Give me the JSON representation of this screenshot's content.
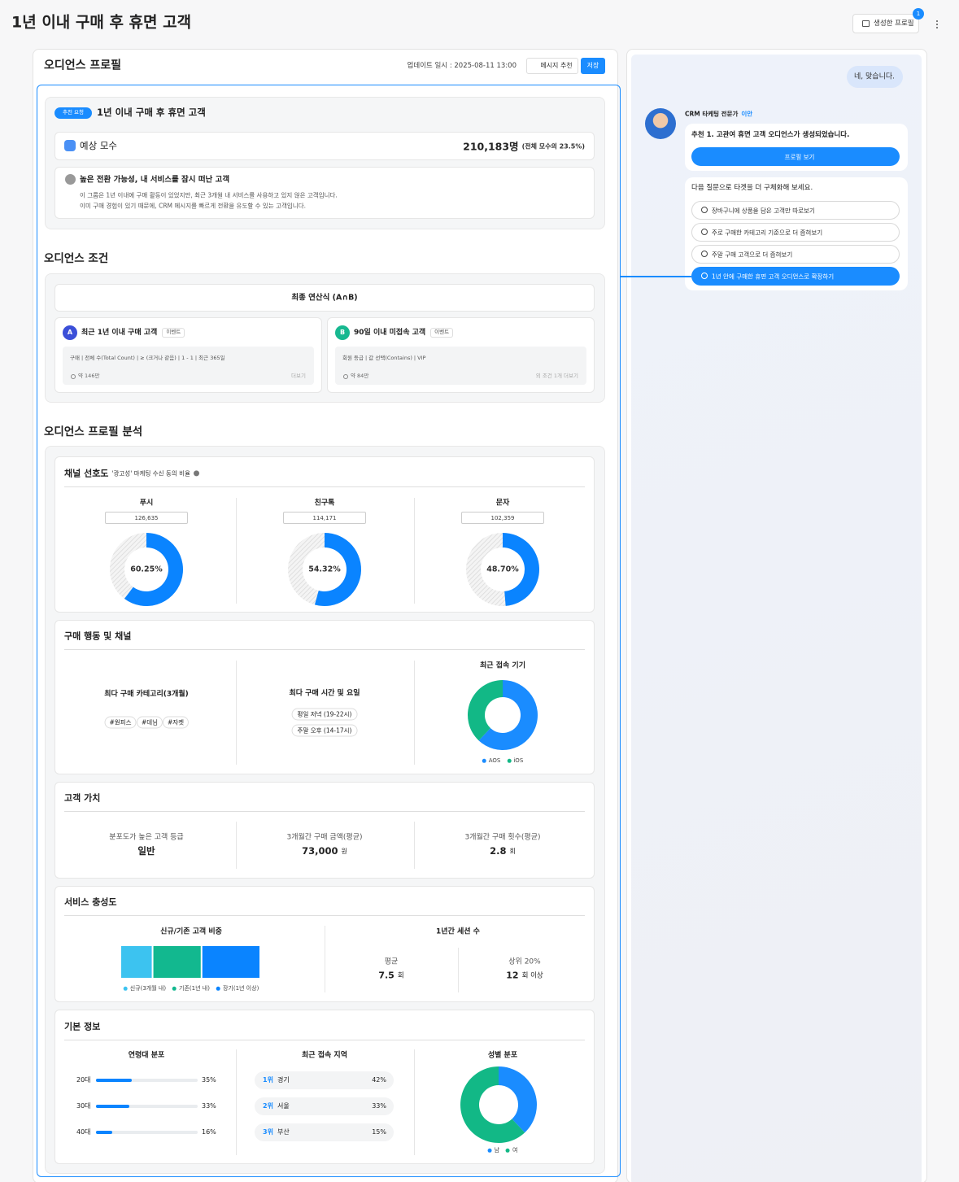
{
  "header": {
    "title": "1년 이내 구매 후 휴면 고객",
    "profiles_button": "생성한 프로필",
    "profiles_badge": "1"
  },
  "profile": {
    "title": "오디언스 프로필",
    "updated": "업데이트 일시 : 2025-08-11 13:00",
    "message_button": "메시지 추천",
    "save_button": "저장",
    "summary": {
      "tag": "추천 요청",
      "name": "1년 이내 구매 후 휴면 고객",
      "estimate_label": "예상 모수",
      "estimate_value": "210,183명",
      "estimate_share": "(전체 모수의 23.5%)",
      "insight_title": "높은 전환 가능성, 내 서비스를 잠시 떠난 고객",
      "insight_lines": [
        "이 그룹은 1년 이내에 구매 활동이 있었지만, 최근 3개월 내 서비스를 사용하고 있지 않은 고객입니다.",
        "이미 구매 경험이 있기 때문에, CRM 메시지를 빠르게 전환을 유도할 수 있는 고객입니다."
      ]
    },
    "conditions": {
      "title": "오디언스 조건",
      "formula": "최종 연산식 (A∩B)",
      "items": [
        {
          "letter": "A",
          "color": "#3b4fd8",
          "name": "최근 1년 이내 구매 고객",
          "tag": "이벤트",
          "rule": "구매 | 전체 수(Total Count) | ≥ (크거나 같음) | 1 - 1 | 최근 365일",
          "count": "약 146만",
          "more": "더보기"
        },
        {
          "letter": "B",
          "color": "#17b890",
          "name": "90일 이내 미접속 고객",
          "tag": "이벤트",
          "rule": "회원 등급 | 값 선택(Contains) | VIP",
          "count": "약 84만",
          "more": "외 조건 1개 더보기"
        }
      ]
    },
    "analysis": {
      "title": "오디언스 프로필 분석",
      "channel": {
        "title": "채널 선호도",
        "subtitle": "'광고성' 마케팅 수신 동의 비율",
        "color": "#0a84ff",
        "items": [
          {
            "name": "푸시",
            "count": "126,635",
            "percent": 60.25,
            "percent_label": "60.25%"
          },
          {
            "name": "친구톡",
            "count": "114,171",
            "percent": 54.32,
            "percent_label": "54.32%"
          },
          {
            "name": "문자",
            "count": "102,359",
            "percent": 48.7,
            "percent_label": "48.70%"
          }
        ]
      },
      "behavior": {
        "title": "구매 행동 및 채널",
        "category_title": "최다 구매 카테고리(3개월)",
        "categories": [
          "#원피스",
          "#데님",
          "#자켓"
        ],
        "time_title": "최다 구매 시간 및 요일",
        "times": [
          "평일 저녁 (19-22시)",
          "주말 오후 (14-17시)"
        ],
        "device_title": "최근 접속 기기",
        "devices": [
          {
            "name": "AOS",
            "color": "#1a8cff",
            "value": 62
          },
          {
            "name": "iOS",
            "color": "#12b886",
            "value": 38
          }
        ]
      },
      "value": {
        "title": "고객 가치",
        "items": [
          {
            "label": "분포도가 높은 고객 등급",
            "value": "일반"
          },
          {
            "label": "3개월간 구매 금액(평균)",
            "value": "73,000",
            "unit": "원"
          },
          {
            "label": "3개월간 구매 횟수(평균)",
            "value": "2.8",
            "unit": "회"
          }
        ]
      },
      "loyalty": {
        "title": "서비스 충성도",
        "ratio_title": "신규/기존 고객 비중",
        "segments": [
          {
            "name": "신규(3개월 내)",
            "color": "#3cc3f0",
            "value": 23
          },
          {
            "name": "기존(1년 내)",
            "color": "#12b88f",
            "value": 35
          },
          {
            "name": "장기(1년 이상)",
            "color": "#0a84ff",
            "value": 42
          }
        ],
        "sessions_title": "1년간 세션 수",
        "sessions": [
          {
            "label": "평균",
            "value": "7.5",
            "unit": "회"
          },
          {
            "label": "상위 20%",
            "value": "12",
            "unit": "회 이상"
          }
        ]
      },
      "basic": {
        "title": "기본 정보",
        "age_title": "연령대 분포",
        "ages": [
          {
            "name": "20대",
            "value": 35,
            "label": "35%"
          },
          {
            "name": "30대",
            "value": 33,
            "label": "33%"
          },
          {
            "name": "40대",
            "value": 16,
            "label": "16%"
          }
        ],
        "region_title": "최근 접속 지역",
        "regions": [
          {
            "rank": "1위",
            "name": "경기",
            "label": "42%"
          },
          {
            "rank": "2위",
            "name": "서울",
            "label": "33%"
          },
          {
            "rank": "3위",
            "name": "부산",
            "label": "15%"
          }
        ],
        "gender_title": "성별 분포",
        "genders": [
          {
            "name": "남",
            "color": "#1a8cff",
            "value": 38
          },
          {
            "name": "여",
            "color": "#12b886",
            "value": 62
          }
        ]
      }
    }
  },
  "chat": {
    "user_message": "네, 맞습니다.",
    "agent_role": "CRM 타케팅 전문가",
    "agent_name": "이안",
    "message": "추천 1. 고관여 휴면 고객 오디언스가 생성되었습니다.",
    "view_button": "프로필 보기",
    "prompt": "다음 질문으로 타겟을 더 구체화해 보세요.",
    "suggestions": [
      "장바구니에 상품을 담은 고객만 따로보기",
      "주로 구매한 카테고리 기준으로 더 좁혀보기",
      "주말 구매 고객으로 더 좁혀보기",
      "1년 안에 구매한 휴면 고객 오디언스로 확장하기"
    ]
  }
}
